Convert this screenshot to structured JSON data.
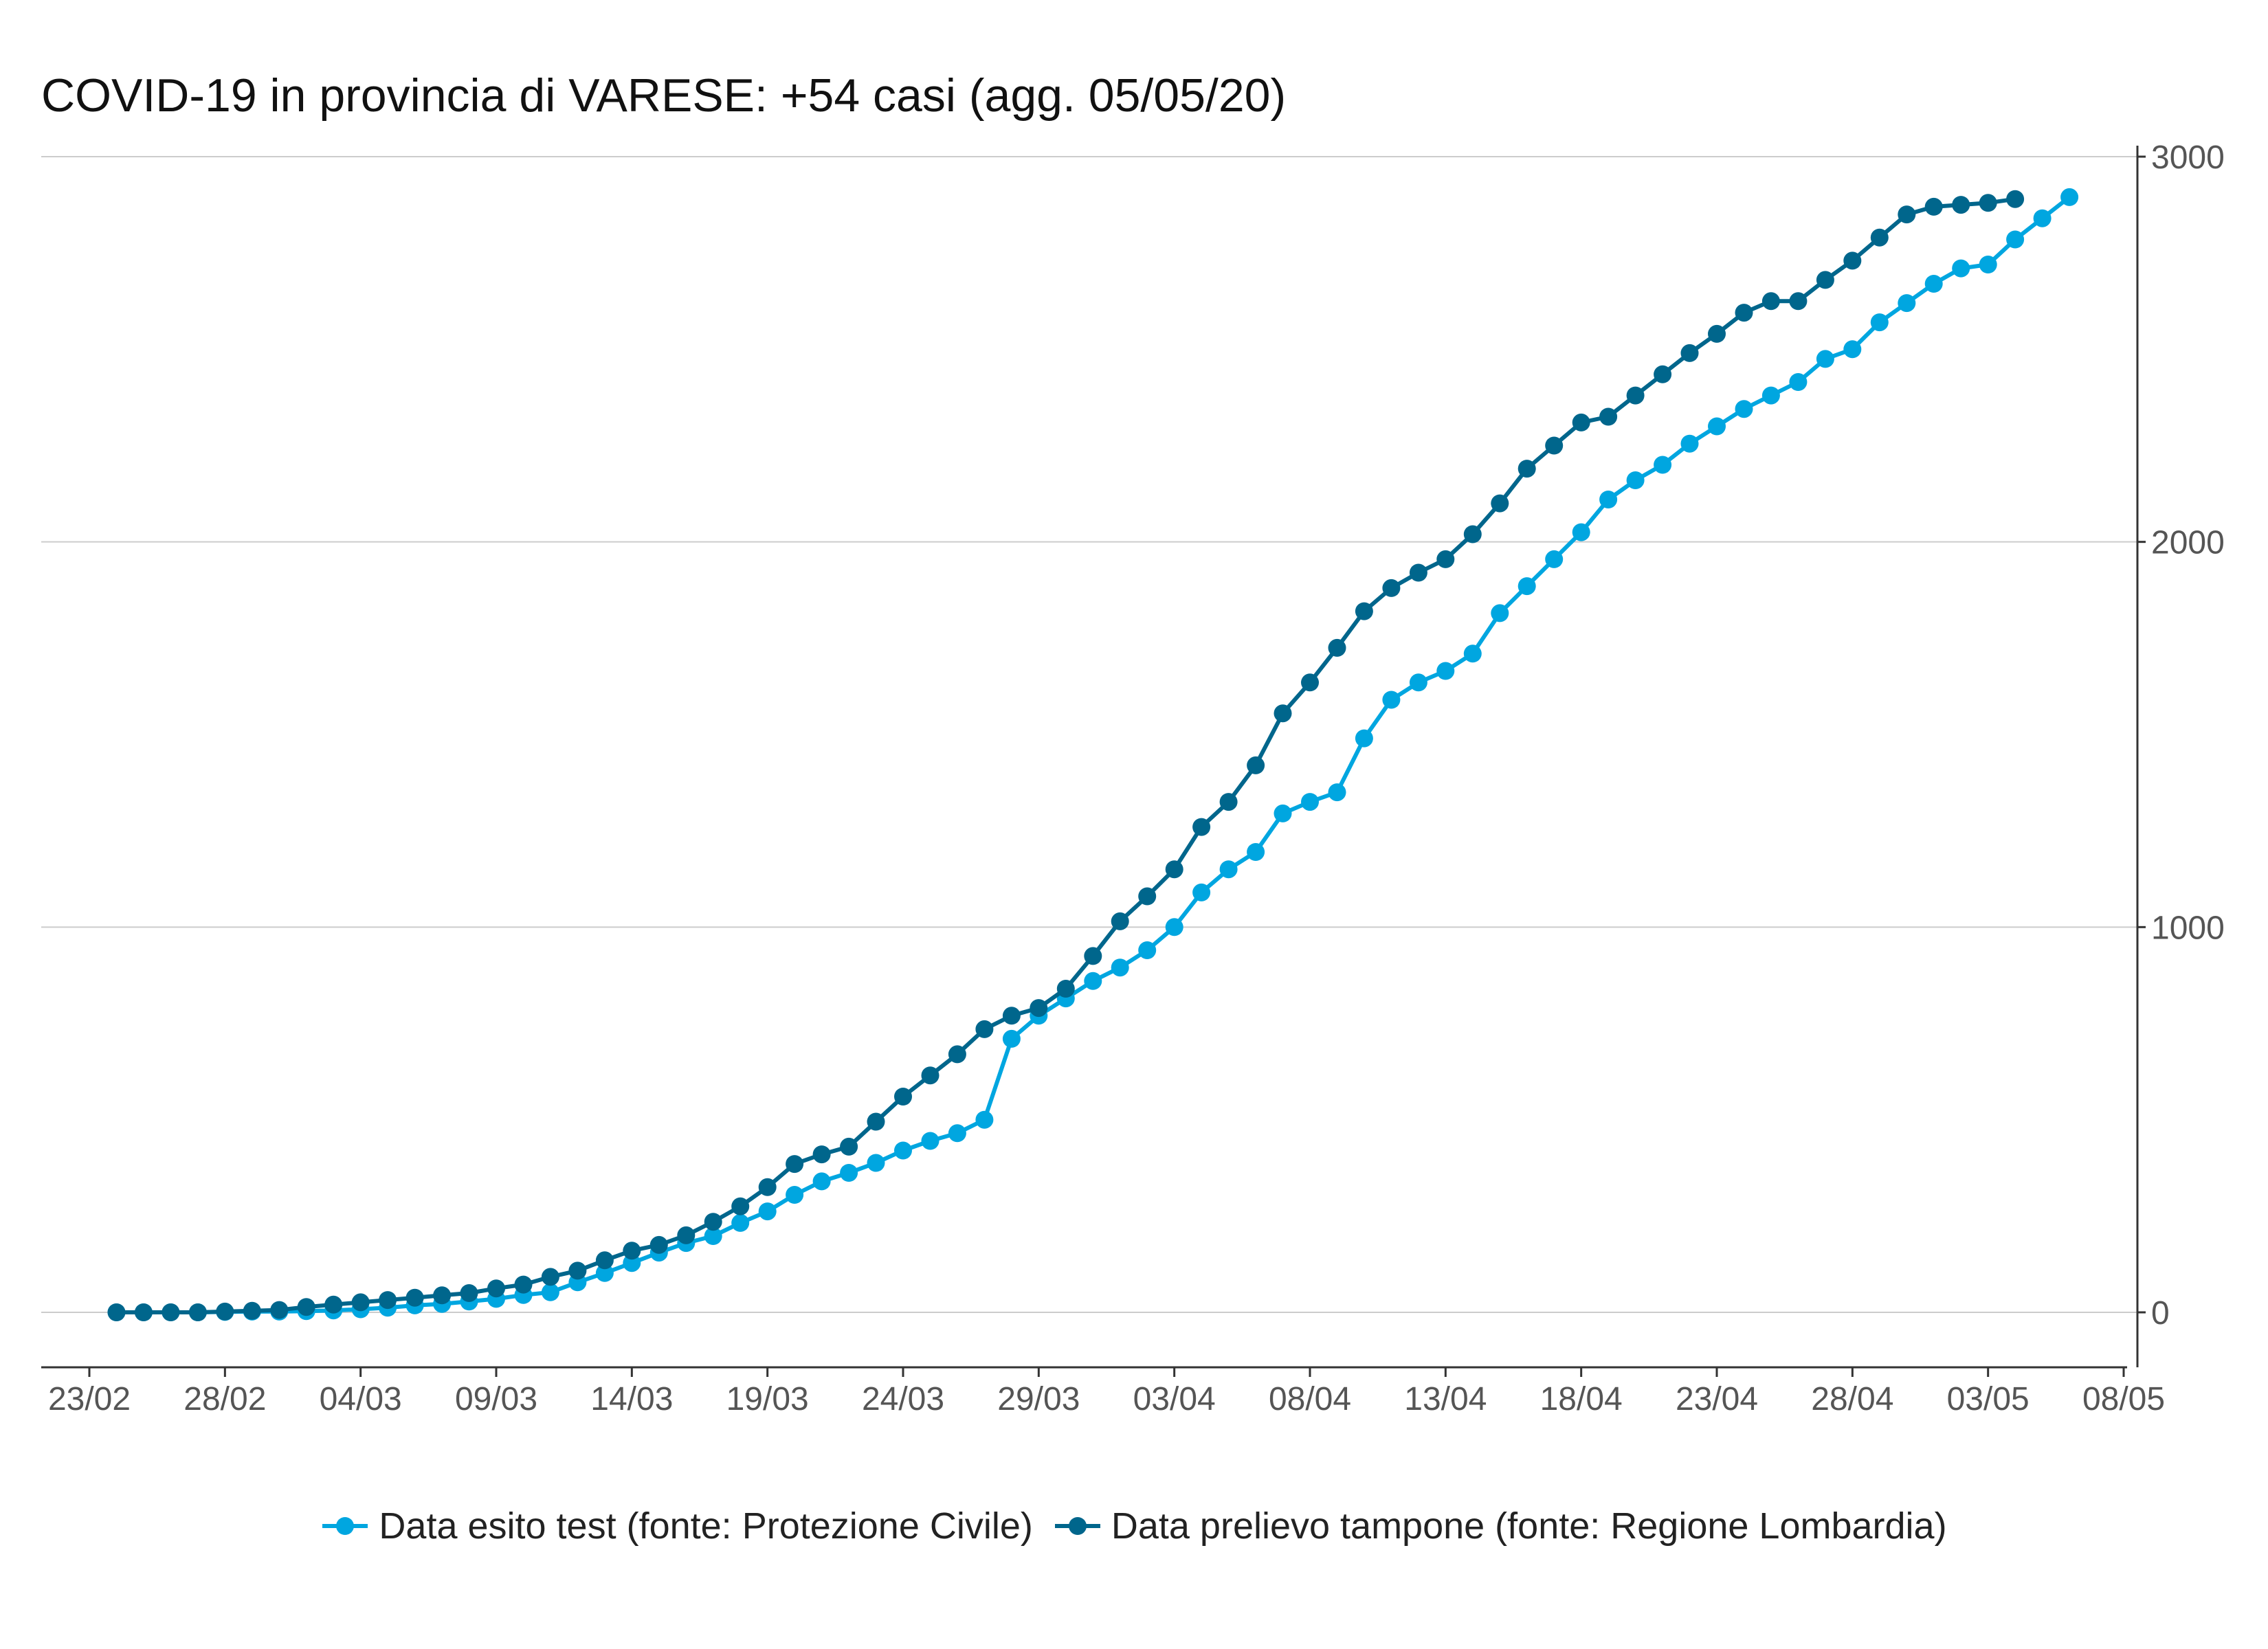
{
  "chart_data": {
    "type": "line",
    "title": "COVID-19 in provincia di VARESE: +54 casi (agg. 05/05/20)",
    "xlabel": "",
    "ylabel": "",
    "y_axis_position": "right",
    "ylim": [
      0,
      3000
    ],
    "yticks": [
      0,
      1000,
      2000,
      3000
    ],
    "xlim": [
      "2020-02-22",
      "2020-05-08"
    ],
    "xticks": [
      "23/02",
      "28/02",
      "04/03",
      "09/03",
      "14/03",
      "19/03",
      "24/03",
      "29/03",
      "03/04",
      "08/04",
      "13/04",
      "18/04",
      "23/04",
      "28/04",
      "03/05",
      "08/05"
    ],
    "xtick_dates": [
      "2020-02-23",
      "2020-02-28",
      "2020-03-04",
      "2020-03-09",
      "2020-03-14",
      "2020-03-19",
      "2020-03-24",
      "2020-03-29",
      "2020-04-03",
      "2020-04-08",
      "2020-04-13",
      "2020-04-18",
      "2020-04-23",
      "2020-04-28",
      "2020-05-03",
      "2020-05-08"
    ],
    "grid": "horizontal",
    "legend_position": "bottom",
    "series": [
      {
        "name": "Data esito test (fonte: Protezione Civile)",
        "color": "#00A6E0",
        "start_date": "2020-02-24",
        "values": [
          0,
          0,
          0,
          0,
          1,
          2,
          2,
          3,
          5,
          8,
          12,
          18,
          22,
          28,
          35,
          45,
          52,
          78,
          102,
          128,
          155,
          180,
          198,
          232,
          262,
          305,
          340,
          362,
          388,
          420,
          445,
          465,
          500,
          710,
          770,
          815,
          860,
          895,
          940,
          1000,
          1090,
          1150,
          1195,
          1295,
          1325,
          1350,
          1490,
          1590,
          1635,
          1665,
          1710,
          1815,
          1885,
          1955,
          2025,
          2110,
          2160,
          2200,
          2255,
          2300,
          2345,
          2380,
          2415,
          2475,
          2500,
          2570,
          2620,
          2670,
          2710,
          2720,
          2785,
          2840,
          2895
        ]
      },
      {
        "name": "Data prelievo tampone (fonte: Regione Lombardia)",
        "color": "#00668C",
        "start_date": "2020-02-24",
        "values": [
          0,
          0,
          0,
          0,
          2,
          4,
          6,
          14,
          20,
          26,
          32,
          38,
          44,
          50,
          62,
          72,
          92,
          108,
          135,
          160,
          175,
          200,
          235,
          275,
          325,
          385,
          410,
          430,
          495,
          560,
          615,
          670,
          735,
          770,
          790,
          840,
          925,
          1015,
          1080,
          1150,
          1260,
          1325,
          1420,
          1555,
          1635,
          1725,
          1820,
          1880,
          1920,
          1955,
          2020,
          2100,
          2190,
          2250,
          2310,
          2325,
          2380,
          2435,
          2490,
          2540,
          2595,
          2625,
          2625,
          2680,
          2730,
          2790,
          2850,
          2870,
          2875,
          2880,
          2890
        ]
      }
    ]
  }
}
